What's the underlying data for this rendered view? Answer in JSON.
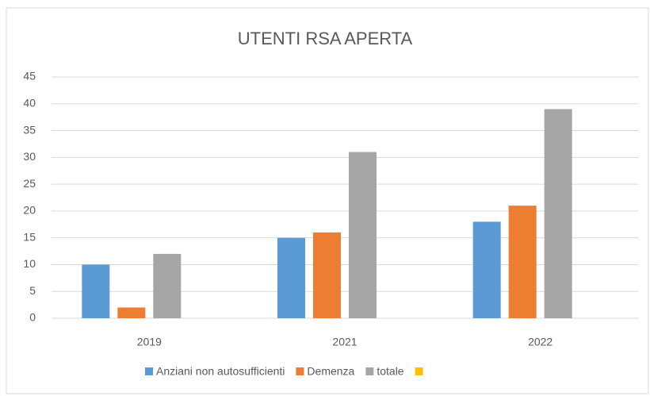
{
  "chart_data": {
    "type": "bar",
    "title": "UTENTI RSA APERTA",
    "categories": [
      "2019",
      "2021",
      "2022"
    ],
    "series": [
      {
        "name": "Anziani non autosufficienti",
        "color": "#5b9bd5",
        "values": [
          10,
          15,
          18
        ]
      },
      {
        "name": "Demenza",
        "color": "#ed7d31",
        "values": [
          2,
          16,
          21
        ]
      },
      {
        "name": "totale",
        "color": "#a5a5a5",
        "values": [
          12,
          31,
          39
        ]
      },
      {
        "color": "#ffc000",
        "values": [
          null,
          null,
          null
        ]
      }
    ],
    "ylim": [
      0,
      45
    ],
    "yticks": [
      0,
      5,
      10,
      15,
      20,
      25,
      30,
      35,
      40,
      45
    ],
    "grid": true,
    "legend": "bottom"
  }
}
